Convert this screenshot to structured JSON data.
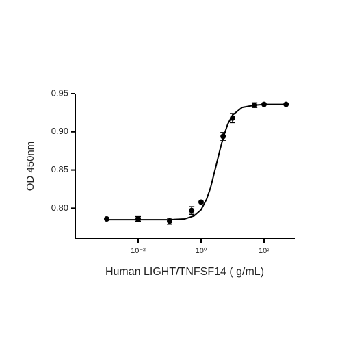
{
  "chart_data": {
    "type": "scatter",
    "x_label": "Human LIGHT/TNFSF14 ( g/mL)",
    "y_label": "OD 450nm",
    "x_scale": "log",
    "xlim": [
      0.0001,
      1000
    ],
    "ylim": [
      0.76,
      0.95
    ],
    "xticks": [
      {
        "value": 0.01,
        "label": "10⁻²"
      },
      {
        "value": 1,
        "label": "10⁰"
      },
      {
        "value": 100,
        "label": "10²"
      }
    ],
    "yticks": [
      {
        "value": 0.8,
        "label": "0.80"
      },
      {
        "value": 0.85,
        "label": "0.85"
      },
      {
        "value": 0.9,
        "label": "0.90"
      },
      {
        "value": 0.95,
        "label": "0.95"
      }
    ],
    "color": "#000000",
    "series": [
      {
        "x": [
          0.001,
          0.01,
          0.1,
          0.5,
          1,
          5,
          10,
          50,
          100,
          500
        ],
        "values": [
          0.786,
          0.786,
          0.783,
          0.797,
          0.808,
          0.894,
          0.918,
          0.935,
          0.936,
          0.936
        ],
        "errors": [
          null,
          0.003,
          0.004,
          0.005,
          null,
          0.005,
          0.006,
          0.003,
          null,
          null
        ]
      }
    ],
    "curve": {
      "x": [
        0.001,
        0.01,
        0.1,
        0.3,
        0.6,
        1,
        1.5,
        2,
        3,
        4,
        5,
        7,
        10,
        20,
        50,
        100,
        500
      ],
      "values": [
        0.785,
        0.785,
        0.785,
        0.786,
        0.79,
        0.798,
        0.812,
        0.827,
        0.856,
        0.877,
        0.892,
        0.91,
        0.922,
        0.932,
        0.935,
        0.936,
        0.936
      ]
    }
  }
}
